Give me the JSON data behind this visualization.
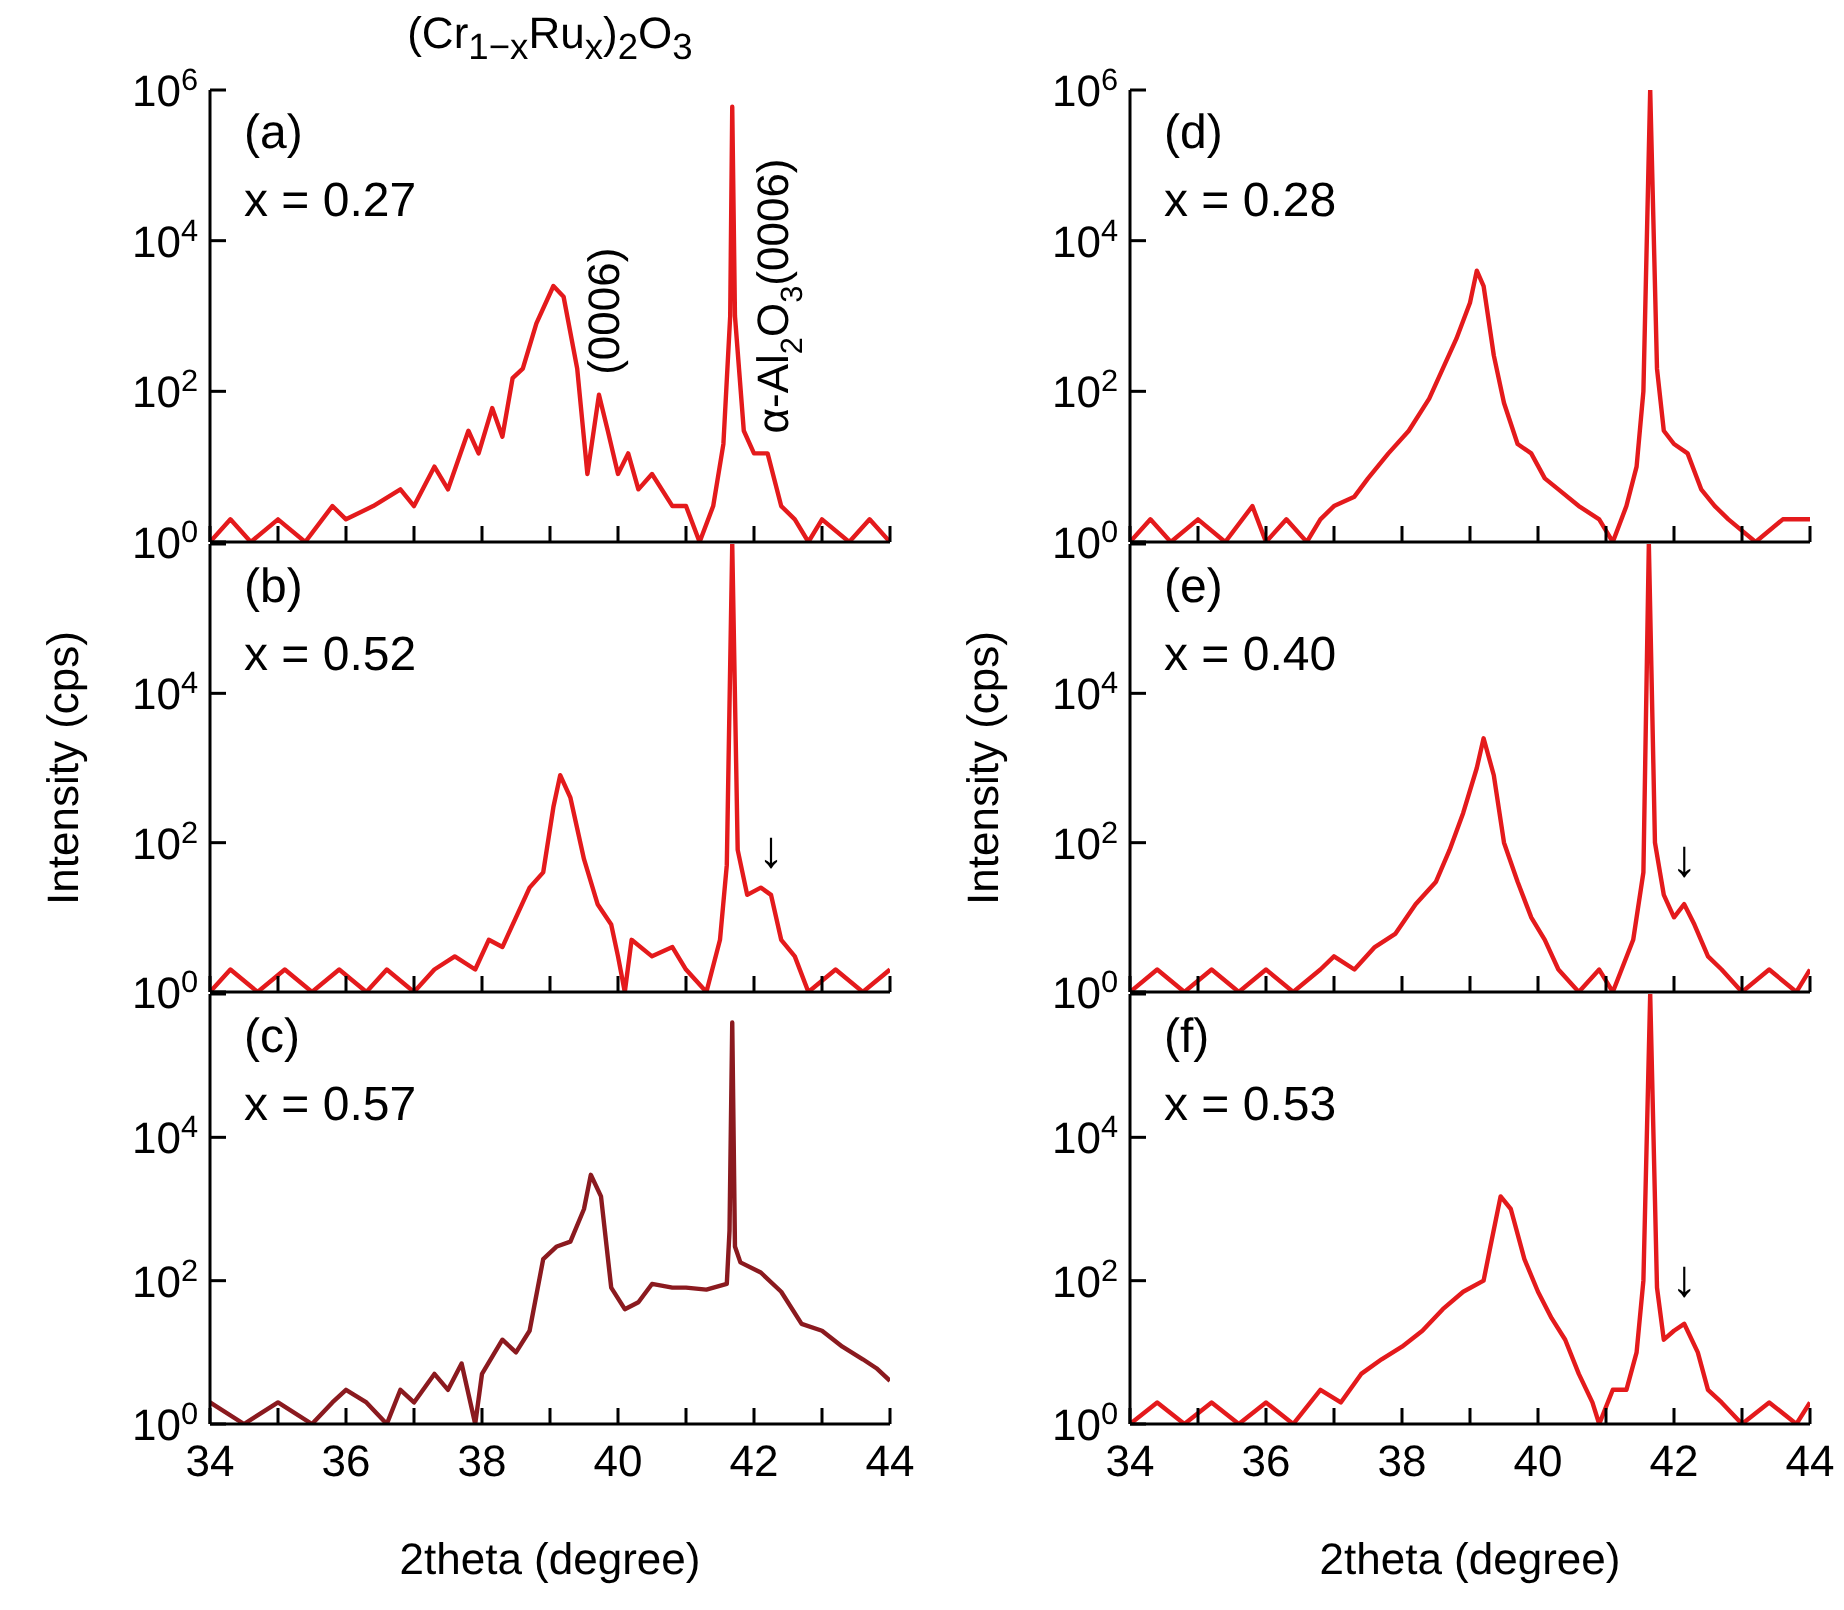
{
  "chart_data": [
    {
      "type": "line",
      "title": "(Cr$_{1−x}$Ru$_{x}$)$_{2}$O$_{3}$",
      "annotations": [
        "(a)",
        "x = 0.27",
        {
          "text": "(0006)",
          "x": 39.72,
          "y": 90
        },
        {
          "text": "α-Al$_{2}$O$_{3}$(0006)",
          "x": 42.2,
          "y": 15
        }
      ],
      "series": [
        {
          "color": "#e41a1c",
          "x": [
            34.0,
            34.3,
            34.6,
            35.0,
            35.4,
            35.8,
            36.0,
            36.4,
            36.8,
            37.0,
            37.3,
            37.5,
            37.8,
            37.95,
            38.15,
            38.3,
            38.45,
            38.6,
            38.8,
            39.05,
            39.2,
            39.4,
            39.55,
            39.72,
            39.85,
            40.0,
            40.15,
            40.3,
            40.5,
            40.8,
            41.0,
            41.2,
            41.4,
            41.55,
            41.65,
            41.68,
            41.72,
            41.85,
            42.0,
            42.2,
            42.4,
            42.6,
            42.8,
            43.0,
            43.4,
            43.7,
            44.0
          ],
          "values": [
            1,
            2,
            1,
            2,
            1,
            3,
            2,
            3,
            5,
            3,
            10,
            5,
            30,
            15,
            60,
            25,
            150,
            200,
            800,
            2500,
            1800,
            200,
            8,
            90,
            30,
            8,
            15,
            5,
            8,
            3,
            3,
            1,
            3,
            20,
            1000,
            600000,
            1000,
            30,
            15,
            15,
            3,
            2,
            1,
            2,
            1,
            2,
            1
          ]
        }
      ],
      "xlim": [
        34,
        44
      ],
      "xticks": [
        34,
        {
          "value": 35,
          "label": null
        },
        36,
        {
          "value": 37,
          "label": null
        },
        38,
        {
          "value": 39,
          "label": null
        },
        40,
        {
          "value": 41,
          "label": null
        },
        42,
        {
          "value": 43,
          "label": null
        },
        44
      ],
      "ylim": [
        1,
        1000000
      ],
      "yticks": [
        {
          "value": 1,
          "label": "10$^{0}$"
        },
        {
          "value": 100,
          "label": "10$^{2}$"
        },
        {
          "value": 10000,
          "label": "10$^{4}$"
        },
        {
          "value": 1000000,
          "label": "10$^{6}$"
        }
      ],
      "log": "y",
      "tick_labels": "y"
    },
    {
      "type": "line",
      "ylabel": "Intensity (cps)",
      "annotations": [
        "(b)",
        "x = 0.52",
        {
          "text": "↓",
          "x": 42.25,
          "y": 20
        }
      ],
      "series": [
        {
          "color": "#e41a1c",
          "x": [
            34.0,
            34.3,
            34.7,
            35.1,
            35.5,
            35.9,
            36.3,
            36.6,
            37.0,
            37.3,
            37.6,
            37.9,
            38.1,
            38.3,
            38.5,
            38.7,
            38.9,
            39.05,
            39.15,
            39.3,
            39.5,
            39.7,
            39.9,
            40.0,
            40.1,
            40.2,
            40.5,
            40.8,
            41.0,
            41.3,
            41.5,
            41.6,
            41.68,
            41.76,
            41.9,
            42.1,
            42.25,
            42.4,
            42.6,
            42.8,
            43.2,
            43.6,
            44.0
          ],
          "values": [
            1,
            2,
            1,
            2,
            1,
            2,
            1,
            2,
            1,
            2,
            3,
            2,
            5,
            4,
            10,
            25,
            40,
            300,
            800,
            400,
            60,
            15,
            8,
            3,
            1,
            5,
            3,
            4,
            2,
            1,
            5,
            50,
            1000000,
            80,
            20,
            25,
            20,
            5,
            3,
            1,
            2,
            1,
            2
          ]
        }
      ],
      "xlim": [
        34,
        44
      ],
      "xticks": [
        34,
        {
          "value": 35,
          "label": null
        },
        36,
        {
          "value": 37,
          "label": null
        },
        38,
        {
          "value": 39,
          "label": null
        },
        40,
        {
          "value": 41,
          "label": null
        },
        42,
        {
          "value": 43,
          "label": null
        },
        44
      ],
      "ylim": [
        1,
        1000000
      ],
      "yticks": [
        {
          "value": 1,
          "label": "10$^{0}$"
        },
        {
          "value": 100,
          "label": "10$^{2}$"
        },
        {
          "value": 10000,
          "label": "10$^{4}$"
        },
        {
          "value": 1000000,
          "label": null
        }
      ],
      "log": "y",
      "tick_labels": "y"
    },
    {
      "type": "line",
      "xlabel": "2theta (degree)",
      "annotations": [
        "(c)",
        "x = 0.57"
      ],
      "series": [
        {
          "color": "#8b1a1f",
          "x": [
            34.0,
            34.5,
            35.0,
            35.5,
            35.8,
            36.0,
            36.3,
            36.6,
            36.8,
            37.0,
            37.3,
            37.5,
            37.7,
            37.9,
            38.0,
            38.3,
            38.5,
            38.7,
            38.9,
            39.1,
            39.3,
            39.5,
            39.6,
            39.75,
            39.9,
            40.1,
            40.3,
            40.5,
            40.8,
            41.0,
            41.3,
            41.6,
            41.64,
            41.68,
            41.72,
            41.8,
            42.1,
            42.4,
            42.7,
            43.0,
            43.3,
            43.6,
            43.8,
            44.0
          ],
          "values": [
            2,
            1,
            2,
            1,
            2,
            3,
            2,
            1,
            3,
            2,
            5,
            3,
            7,
            1,
            5,
            15,
            10,
            20,
            200,
            300,
            350,
            1000,
            3000,
            1500,
            80,
            40,
            50,
            90,
            80,
            80,
            75,
            90,
            500,
            400000,
            300,
            180,
            130,
            70,
            25,
            20,
            12,
            8,
            6,
            4
          ]
        }
      ],
      "xlim": [
        34,
        44
      ],
      "xticks": [
        34,
        {
          "value": 35,
          "label": null
        },
        36,
        {
          "value": 37,
          "label": null
        },
        38,
        {
          "value": 39,
          "label": null
        },
        40,
        {
          "value": 41,
          "label": null
        },
        42,
        {
          "value": 43,
          "label": null
        },
        44
      ],
      "ylim": [
        1,
        1000000
      ],
      "yticks": [
        {
          "value": 1,
          "label": "10$^{0}$"
        },
        {
          "value": 100,
          "label": "10$^{2}$"
        },
        {
          "value": 10000,
          "label": "10$^{4}$"
        },
        {
          "value": 1000000,
          "label": null
        }
      ],
      "log": "y"
    },
    {
      "type": "line",
      "annotations": [
        "(d)",
        "x = 0.28"
      ],
      "series": [
        {
          "color": "#e41a1c",
          "x": [
            34.0,
            34.3,
            34.6,
            35.0,
            35.4,
            35.8,
            36.0,
            36.3,
            36.6,
            36.8,
            37.0,
            37.3,
            37.5,
            37.8,
            38.1,
            38.4,
            38.6,
            38.8,
            39.0,
            39.1,
            39.2,
            39.35,
            39.5,
            39.7,
            39.9,
            40.1,
            40.3,
            40.6,
            40.9,
            41.1,
            41.3,
            41.45,
            41.55,
            41.65,
            41.75,
            41.85,
            42.0,
            42.2,
            42.4,
            42.6,
            42.8,
            43.2,
            43.6,
            44.0
          ],
          "values": [
            1,
            2,
            1,
            2,
            1,
            3,
            1,
            2,
            1,
            2,
            3,
            4,
            7,
            15,
            30,
            80,
            200,
            500,
            1500,
            4000,
            2500,
            300,
            70,
            20,
            15,
            7,
            5,
            3,
            2,
            1,
            3,
            10,
            100,
            1000000,
            200,
            30,
            20,
            15,
            5,
            3,
            2,
            1,
            2,
            2
          ]
        }
      ],
      "xlim": [
        34,
        44
      ],
      "xticks": [
        34,
        {
          "value": 35,
          "label": null
        },
        36,
        {
          "value": 37,
          "label": null
        },
        38,
        {
          "value": 39,
          "label": null
        },
        40,
        {
          "value": 41,
          "label": null
        },
        42,
        {
          "value": 43,
          "label": null
        },
        44
      ],
      "ylim": [
        1,
        1000000
      ],
      "yticks": [
        {
          "value": 1,
          "label": "10$^{0}$"
        },
        {
          "value": 100,
          "label": "10$^{2}$"
        },
        {
          "value": 10000,
          "label": "10$^{4}$"
        },
        {
          "value": 1000000,
          "label": "10$^{6}$"
        }
      ],
      "log": "y",
      "tick_labels": "y"
    },
    {
      "type": "line",
      "ylabel": "Intensity (cps)",
      "annotations": [
        "(e)",
        "x = 0.40",
        {
          "text": "↓",
          "x": 42.15,
          "y": 15
        }
      ],
      "series": [
        {
          "color": "#e41a1c",
          "x": [
            34.0,
            34.4,
            34.8,
            35.2,
            35.6,
            36.0,
            36.4,
            36.8,
            37.0,
            37.3,
            37.6,
            37.9,
            38.2,
            38.5,
            38.7,
            38.9,
            39.1,
            39.2,
            39.35,
            39.5,
            39.7,
            39.9,
            40.1,
            40.3,
            40.6,
            40.9,
            41.1,
            41.4,
            41.55,
            41.63,
            41.72,
            41.85,
            42.0,
            42.15,
            42.3,
            42.5,
            42.7,
            43.0,
            43.4,
            43.8,
            44.0
          ],
          "values": [
            1,
            2,
            1,
            2,
            1,
            2,
            1,
            2,
            3,
            2,
            4,
            6,
            15,
            30,
            80,
            250,
            1000,
            2500,
            800,
            100,
            30,
            10,
            5,
            2,
            1,
            2,
            1,
            5,
            40,
            1000000,
            100,
            20,
            10,
            15,
            8,
            3,
            2,
            1,
            2,
            1,
            2
          ]
        }
      ],
      "xlim": [
        34,
        44
      ],
      "xticks": [
        34,
        {
          "value": 35,
          "label": null
        },
        36,
        {
          "value": 37,
          "label": null
        },
        38,
        {
          "value": 39,
          "label": null
        },
        40,
        {
          "value": 41,
          "label": null
        },
        42,
        {
          "value": 43,
          "label": null
        },
        44
      ],
      "ylim": [
        1,
        1000000
      ],
      "yticks": [
        {
          "value": 1,
          "label": "10$^{0}$"
        },
        {
          "value": 100,
          "label": "10$^{2}$"
        },
        {
          "value": 10000,
          "label": "10$^{4}$"
        },
        {
          "value": 1000000,
          "label": null
        }
      ],
      "log": "y",
      "tick_labels": "y"
    },
    {
      "type": "line",
      "xlabel": "2theta (degree)",
      "annotations": [
        "(f)",
        "x = 0.53",
        {
          "text": "↓",
          "x": 42.15,
          "y": 25
        }
      ],
      "series": [
        {
          "color": "#e41a1c",
          "x": [
            34.0,
            34.4,
            34.8,
            35.2,
            35.6,
            36.0,
            36.4,
            36.8,
            37.1,
            37.4,
            37.7,
            38.0,
            38.3,
            38.6,
            38.9,
            39.2,
            39.3,
            39.45,
            39.6,
            39.8,
            40.0,
            40.2,
            40.4,
            40.6,
            40.8,
            40.9,
            41.1,
            41.3,
            41.45,
            41.55,
            41.65,
            41.75,
            41.85,
            42.0,
            42.15,
            42.35,
            42.5,
            42.7,
            43.0,
            43.4,
            43.8,
            44.0
          ],
          "values": [
            1,
            2,
            1,
            2,
            1,
            2,
            1,
            3,
            2,
            5,
            8,
            12,
            20,
            40,
            70,
            100,
            300,
            1500,
            1000,
            200,
            70,
            30,
            15,
            5,
            2,
            1,
            3,
            3,
            10,
            100,
            1000000,
            80,
            15,
            20,
            25,
            10,
            3,
            2,
            1,
            2,
            1,
            2
          ]
        }
      ],
      "xlim": [
        34,
        44
      ],
      "xticks": [
        34,
        {
          "value": 35,
          "label": null
        },
        36,
        {
          "value": 37,
          "label": null
        },
        38,
        {
          "value": 39,
          "label": null
        },
        40,
        {
          "value": 41,
          "label": null
        },
        42,
        {
          "value": 43,
          "label": null
        },
        44
      ],
      "ylim": [
        1,
        1000000
      ],
      "yticks": [
        {
          "value": 1,
          "label": "10$^{0}$"
        },
        {
          "value": 100,
          "label": "10$^{2}$"
        },
        {
          "value": 10000,
          "label": "10$^{4}$"
        },
        {
          "value": 1000000,
          "label": null
        }
      ],
      "log": "y"
    }
  ]
}
